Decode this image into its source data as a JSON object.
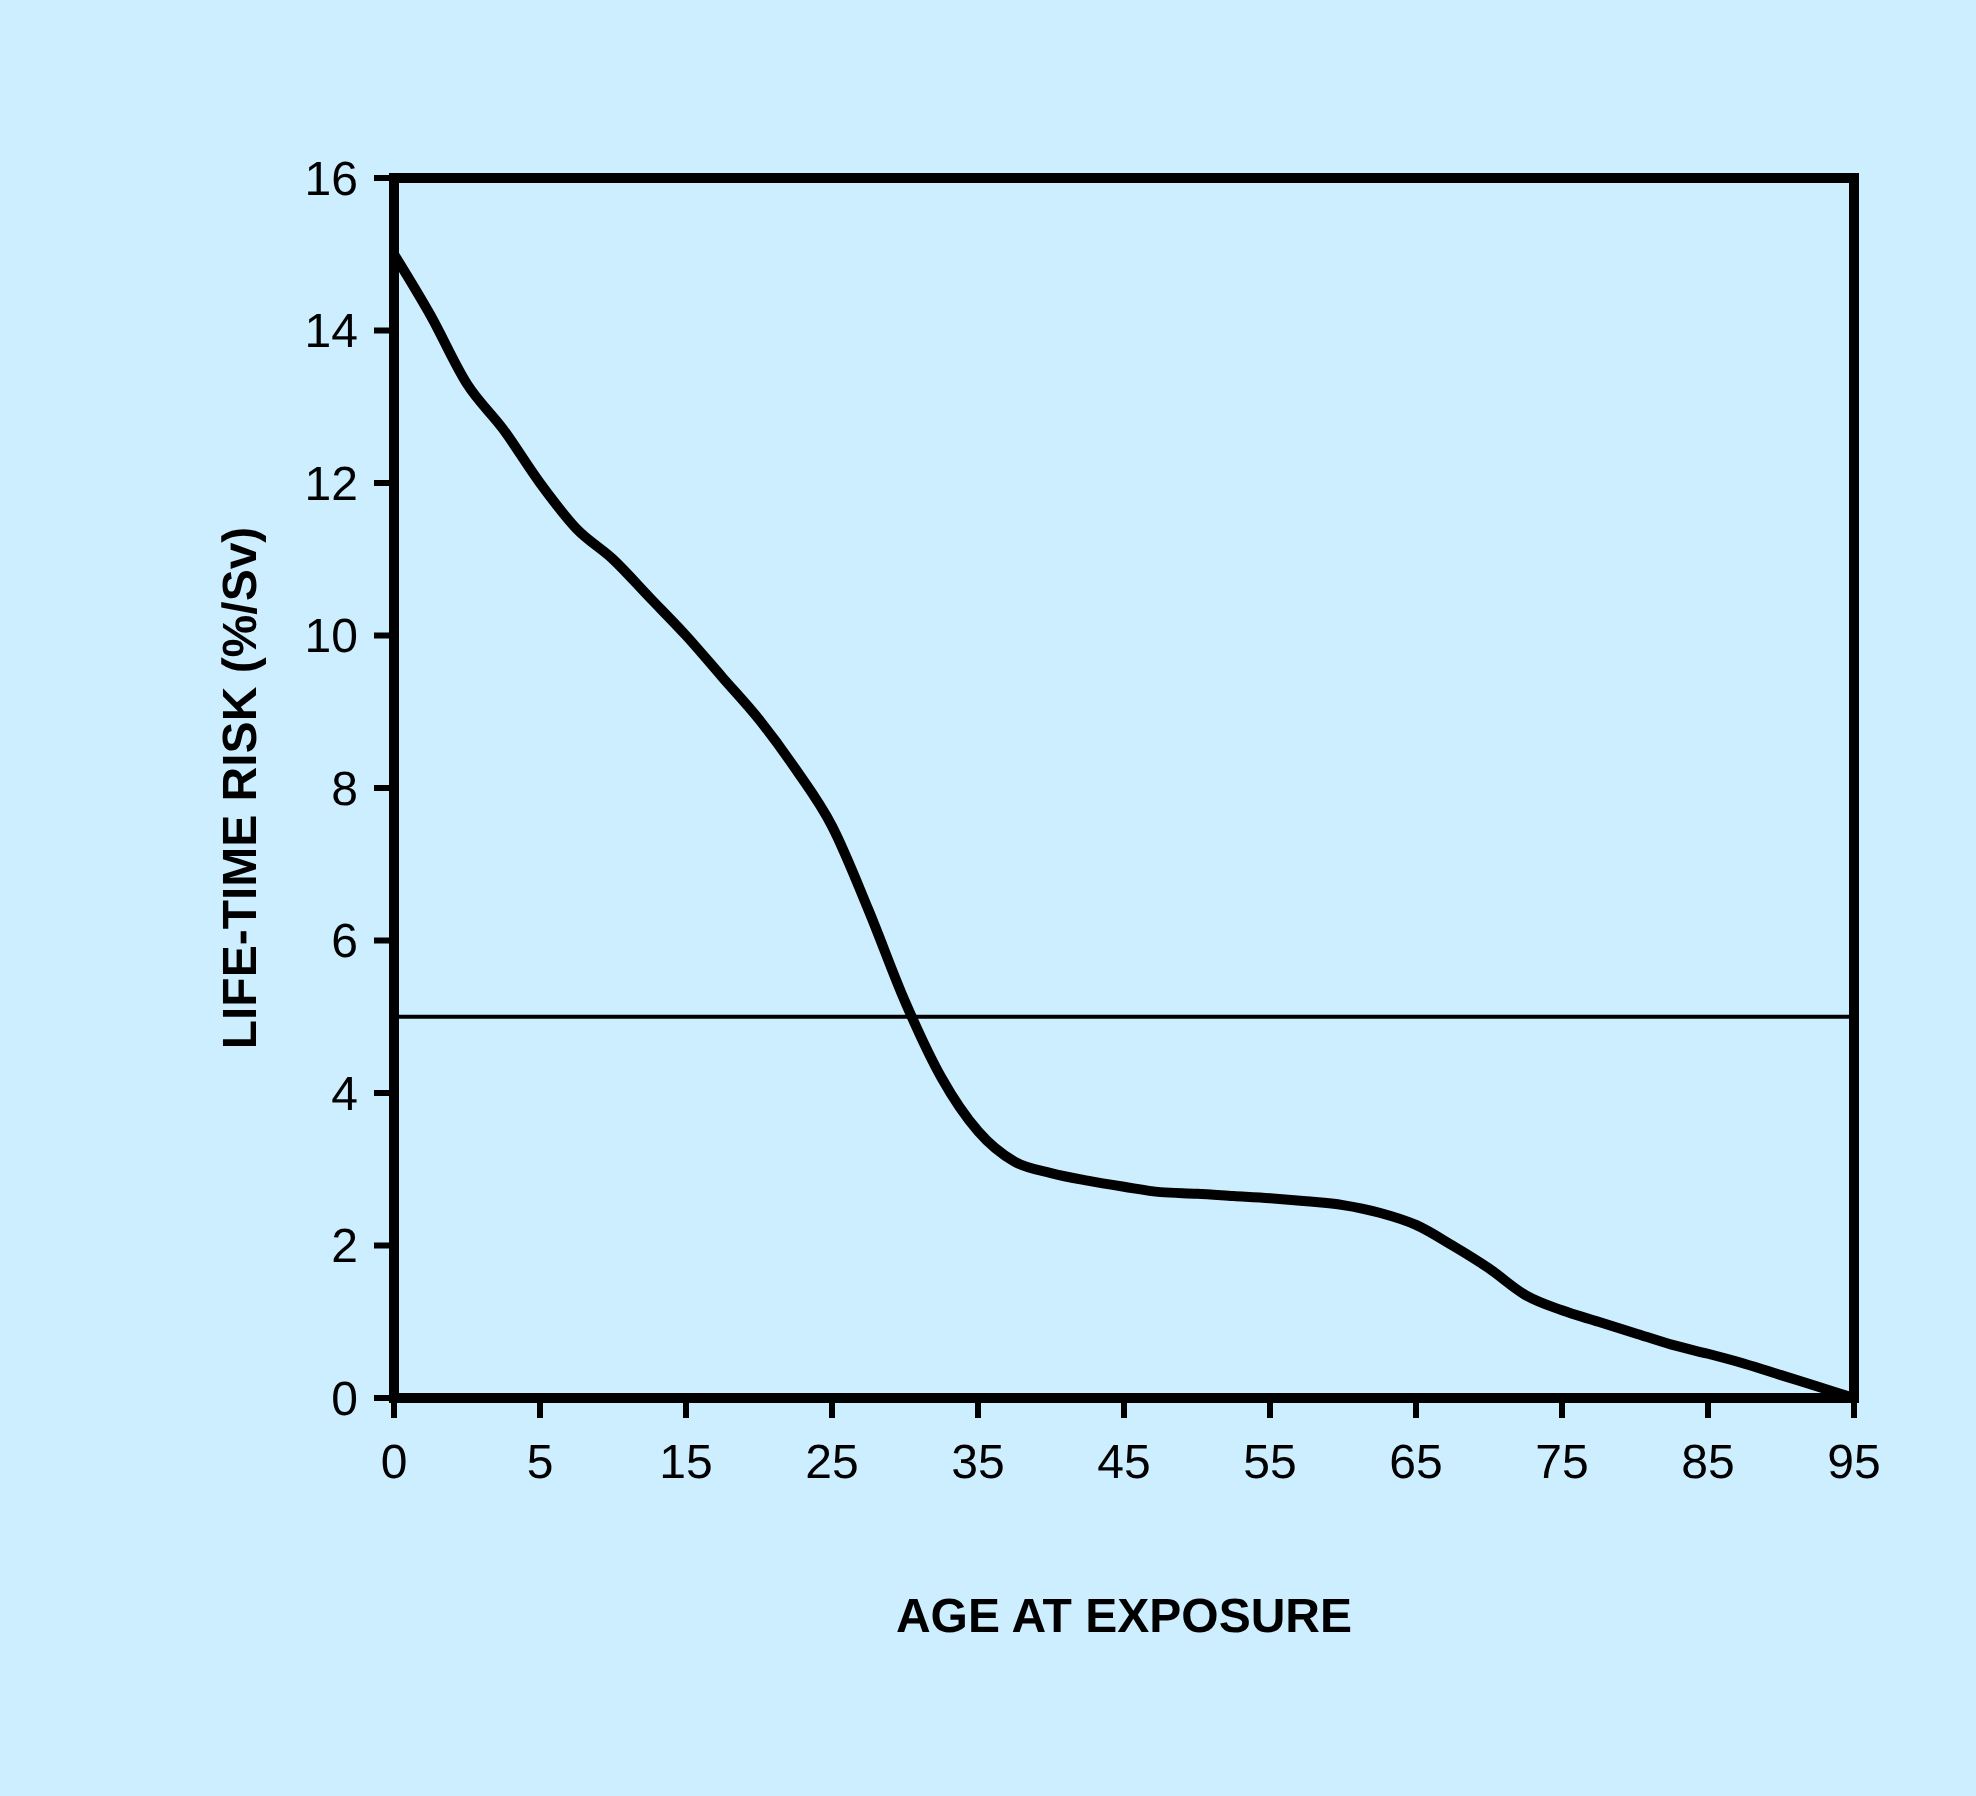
{
  "chart_data": {
    "type": "line",
    "xlabel": "AGE AT EXPOSURE",
    "ylabel": "LIFE-TIME RISK (%/Sv)",
    "categories": [
      "0",
      null,
      null,
      null,
      "5",
      null,
      null,
      null,
      "15",
      null,
      null,
      null,
      "25",
      null,
      null,
      null,
      "35",
      null,
      null,
      null,
      "45",
      null,
      null,
      null,
      "55",
      null,
      null,
      null,
      "65",
      null,
      null,
      null,
      "75",
      null,
      null,
      null,
      "85",
      null,
      null,
      null,
      "95"
    ],
    "series": [
      {
        "color": "#000000",
        "values": [
          15.0,
          14.2,
          13.3,
          12.7,
          12.0,
          11.4,
          11.0,
          10.5,
          10.0,
          9.45,
          8.9,
          8.25,
          7.5,
          6.4,
          5.2,
          4.2,
          3.5,
          3.1,
          2.95,
          2.85,
          2.77,
          2.7,
          2.68,
          2.65,
          2.62,
          2.58,
          2.53,
          2.43,
          2.27,
          2.0,
          1.7,
          1.35,
          1.15,
          1.0,
          0.85,
          0.7,
          0.58,
          0.45,
          0.3,
          0.15,
          0.0
        ]
      }
    ],
    "ylim": [
      0,
      16
    ],
    "yticks": [
      0,
      2,
      4,
      6,
      8,
      10,
      12,
      14,
      16
    ],
    "ref_lines": [
      {
        "axis": "y",
        "value": 5,
        "color": "#000000"
      }
    ],
    "grid": false,
    "marker": "none",
    "line_style": "solid"
  }
}
